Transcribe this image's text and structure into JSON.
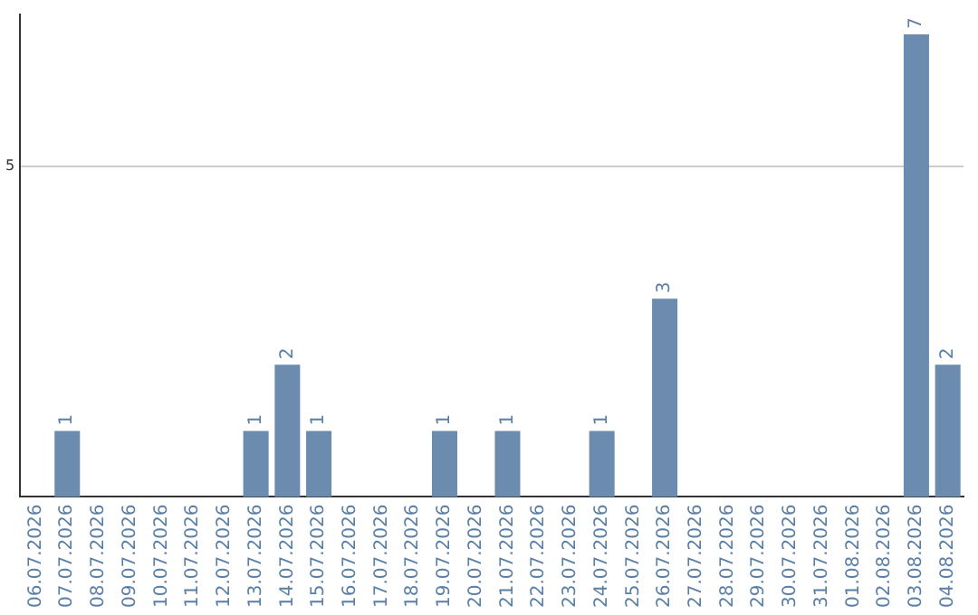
{
  "chart_data": {
    "type": "bar",
    "categories": [
      "06.07.2026",
      "07.07.2026",
      "08.07.2026",
      "09.07.2026",
      "10.07.2026",
      "11.07.2026",
      "12.07.2026",
      "13.07.2026",
      "14.07.2026",
      "15.07.2026",
      "16.07.2026",
      "17.07.2026",
      "18.07.2026",
      "19.07.2026",
      "20.07.2026",
      "21.07.2026",
      "22.07.2026",
      "23.07.2026",
      "24.07.2026",
      "25.07.2026",
      "26.07.2026",
      "27.07.2026",
      "28.07.2026",
      "29.07.2026",
      "30.07.2026",
      "31.07.2026",
      "01.08.2026",
      "02.08.2026",
      "03.08.2026",
      "04.08.2026"
    ],
    "values": [
      0,
      1,
      0,
      0,
      0,
      0,
      0,
      1,
      2,
      1,
      0,
      0,
      0,
      1,
      0,
      1,
      0,
      0,
      1,
      0,
      3,
      0,
      0,
      0,
      0,
      0,
      0,
      0,
      7,
      2
    ],
    "value_labels": [
      null,
      "1",
      null,
      null,
      null,
      null,
      null,
      "1",
      "2",
      "1",
      null,
      null,
      null,
      "1",
      null,
      "1",
      null,
      null,
      "1",
      null,
      "3",
      null,
      null,
      null,
      null,
      null,
      null,
      null,
      "7",
      "2"
    ],
    "color": "#6b8cae",
    "ylim": [
      0,
      7.3
    ],
    "yticks": [
      5
    ],
    "grid": "y",
    "legend": false
  }
}
